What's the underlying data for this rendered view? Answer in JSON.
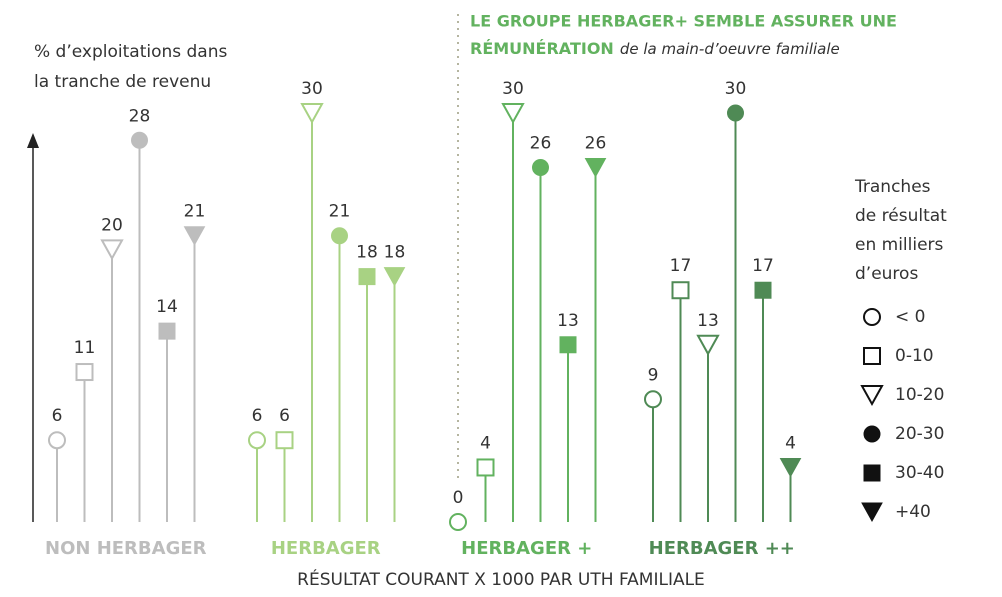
{
  "chart_data": {
    "type": "lollipop",
    "title": [
      "% d’exploitations dans",
      "la tranche de revenu"
    ],
    "annotation": [
      "LE GROUPE HERBAGER+ SEMBLE ASSURER UNE",
      "RÉMUNÉRATION",
      "de la main-d’oeuvre familiale"
    ],
    "x_label": "RÉSULTAT COURANT X 1000 PAR UTH FAMILIALE",
    "categories": [
      "NON HERBAGER",
      "HERBAGER",
      "HERBAGER +",
      "HERBAGER ++"
    ],
    "category_colors": [
      "#bdbdbd",
      "#a8d283",
      "#62b25f",
      "#4f8a55"
    ],
    "legend_title": [
      "Tranches",
      "de résultat",
      "en milliers",
      "d’euros"
    ],
    "ylim": [
      0,
      30
    ],
    "series": [
      {
        "name": "< 0",
        "marker": "circle-open",
        "values": [
          6,
          6,
          0,
          9
        ]
      },
      {
        "name": "0-10",
        "marker": "square-open",
        "values": [
          11,
          6,
          4,
          17
        ]
      },
      {
        "name": "10-20",
        "marker": "triangle-open",
        "values": [
          20,
          30,
          30,
          13
        ]
      },
      {
        "name": "20-30",
        "marker": "circle",
        "values": [
          28,
          21,
          26,
          30
        ]
      },
      {
        "name": "30-40",
        "marker": "square",
        "values": [
          14,
          18,
          13,
          17
        ]
      },
      {
        "name": "+40",
        "marker": "triangle",
        "values": [
          21,
          18,
          26,
          4
        ]
      }
    ]
  }
}
